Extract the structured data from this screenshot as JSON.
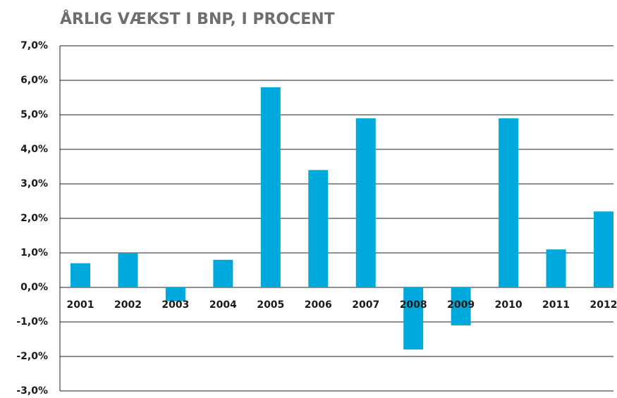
{
  "chart_data": {
    "type": "bar",
    "title": "ÅRLIG VÆKST I BNP, I PROCENT",
    "categories": [
      "2001",
      "2002",
      "2003",
      "2004",
      "2005",
      "2006",
      "2007",
      "2008",
      "2009",
      "2010",
      "2011",
      "2012"
    ],
    "values": [
      0.7,
      1.0,
      -0.4,
      0.8,
      5.8,
      3.4,
      4.9,
      -1.8,
      -1.1,
      4.9,
      1.1,
      2.2
    ],
    "color": "#00a9dc",
    "ylim": [
      -3,
      7
    ],
    "yticks": [
      {
        "value": -3,
        "label": "-3,0%"
      },
      {
        "value": -2,
        "label": "-2,0%"
      },
      {
        "value": -1,
        "label": "-1,0%"
      },
      {
        "value": 0,
        "label": "0,0%"
      },
      {
        "value": 1,
        "label": "1,0%"
      },
      {
        "value": 2,
        "label": "2,0%"
      },
      {
        "value": 3,
        "label": "3,0%"
      },
      {
        "value": 4,
        "label": "4,0%"
      },
      {
        "value": 5,
        "label": "5,0%"
      },
      {
        "value": 6,
        "label": "6,0%"
      },
      {
        "value": 7,
        "label": "7,0%"
      }
    ],
    "grid": true
  }
}
